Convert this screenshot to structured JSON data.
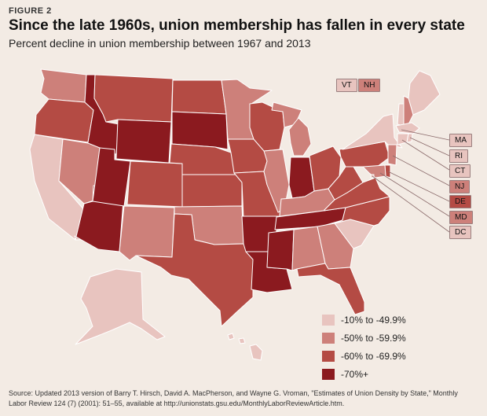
{
  "header": {
    "figure_label": "FIGURE 2",
    "title": "Since the late 1960s, union membership has fallen in every state",
    "subtitle": "Percent decline in union membership between 1967 and 2013"
  },
  "legend": [
    {
      "label": "-10% to -49.9%",
      "color": "#e8c4bf"
    },
    {
      "label": "-50% to -59.9%",
      "color": "#cd807a"
    },
    {
      "label": "-60% to -69.9%",
      "color": "#b44b44"
    },
    {
      "label": "-70%+",
      "color": "#8b1a1f"
    }
  ],
  "chips": [
    {
      "abbr": "VT",
      "class": 0
    },
    {
      "abbr": "NH",
      "class": 1
    },
    {
      "abbr": "MA",
      "class": 0
    },
    {
      "abbr": "RI",
      "class": 0
    },
    {
      "abbr": "CT",
      "class": 0
    },
    {
      "abbr": "NJ",
      "class": 1
    },
    {
      "abbr": "DE",
      "class": 2
    },
    {
      "abbr": "MD",
      "class": 1
    },
    {
      "abbr": "DC",
      "class": 0
    }
  ],
  "map_data": [
    {
      "state": "WA",
      "class": 1
    },
    {
      "state": "OR",
      "class": 2
    },
    {
      "state": "CA",
      "class": 0
    },
    {
      "state": "ID",
      "class": 3
    },
    {
      "state": "NV",
      "class": 1
    },
    {
      "state": "AZ",
      "class": 3
    },
    {
      "state": "UT",
      "class": 3
    },
    {
      "state": "MT",
      "class": 2
    },
    {
      "state": "WY",
      "class": 3
    },
    {
      "state": "CO",
      "class": 2
    },
    {
      "state": "NM",
      "class": 1
    },
    {
      "state": "ND",
      "class": 2
    },
    {
      "state": "SD",
      "class": 3
    },
    {
      "state": "NE",
      "class": 2
    },
    {
      "state": "KS",
      "class": 2
    },
    {
      "state": "OK",
      "class": 1
    },
    {
      "state": "TX",
      "class": 2
    },
    {
      "state": "MN",
      "class": 1
    },
    {
      "state": "IA",
      "class": 2
    },
    {
      "state": "MO",
      "class": 2
    },
    {
      "state": "AR",
      "class": 3
    },
    {
      "state": "LA",
      "class": 3
    },
    {
      "state": "WI",
      "class": 2
    },
    {
      "state": "IL",
      "class": 1
    },
    {
      "state": "MI",
      "class": 1
    },
    {
      "state": "IN",
      "class": 3
    },
    {
      "state": "OH",
      "class": 2
    },
    {
      "state": "KY",
      "class": 1
    },
    {
      "state": "TN",
      "class": 3
    },
    {
      "state": "MS",
      "class": 3
    },
    {
      "state": "AL",
      "class": 1
    },
    {
      "state": "GA",
      "class": 1
    },
    {
      "state": "FL",
      "class": 2
    },
    {
      "state": "SC",
      "class": 0
    },
    {
      "state": "NC",
      "class": 2
    },
    {
      "state": "VA",
      "class": 2
    },
    {
      "state": "WV",
      "class": 2
    },
    {
      "state": "PA",
      "class": 2
    },
    {
      "state": "NY",
      "class": 0
    },
    {
      "state": "ME",
      "class": 0
    },
    {
      "state": "AK",
      "class": 0
    },
    {
      "state": "HI",
      "class": 0
    }
  ],
  "source": {
    "line1": "Source: Updated 2013 version of Barry T. Hirsch, David A. MacPherson, and Wayne G. Vroman, \"Estimates of Union Density by State,\" Monthly",
    "line2": "Labor Review 124 (7) (2001): 51–55, available at http://unionstats.gsu.edu/MonthlyLaborReviewArticle.htm."
  }
}
